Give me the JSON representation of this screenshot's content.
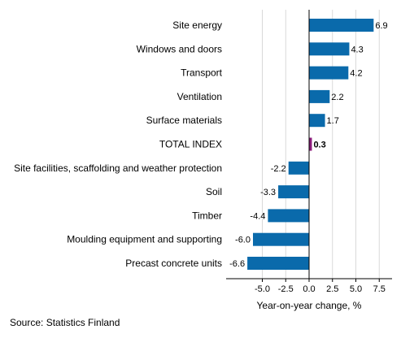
{
  "chart_data": {
    "type": "bar",
    "orientation": "horizontal",
    "categories": [
      "Site energy",
      "Windows and doors",
      "Transport",
      "Ventilation",
      "Surface materials",
      "TOTAL INDEX",
      "Site facilities, scaffolding and weather protection",
      "Soil",
      "Timber",
      "Moulding equipment and supporting",
      "Precast concrete units"
    ],
    "values": [
      6.9,
      4.3,
      4.2,
      2.2,
      1.7,
      0.3,
      -2.2,
      -3.3,
      -4.4,
      -6.0,
      -6.6
    ],
    "value_labels": [
      "6.9",
      "4.3",
      "4.2",
      "2.2",
      "1.7",
      "0.3",
      "-2.2",
      "-3.3",
      "-4.4",
      "-6.0",
      "-6.6"
    ],
    "highlight_category": "TOTAL INDEX",
    "xlabel": "Year-on-year change, %",
    "ylabel": "",
    "xlim": [
      -7.5,
      9.0
    ],
    "xticks": [
      -5.0,
      -2.5,
      0.0,
      2.5,
      5.0,
      7.5
    ],
    "xtick_labels": [
      "-5.0",
      "-2.5",
      "0.0",
      "2.5",
      "5.0",
      "7.5"
    ],
    "grid": true,
    "colors": {
      "bar": "#0a6aab",
      "highlight": "#8b1a7a",
      "grid": "#d9d9d9",
      "axis": "#000000"
    }
  },
  "source": "Source: Statistics Finland"
}
